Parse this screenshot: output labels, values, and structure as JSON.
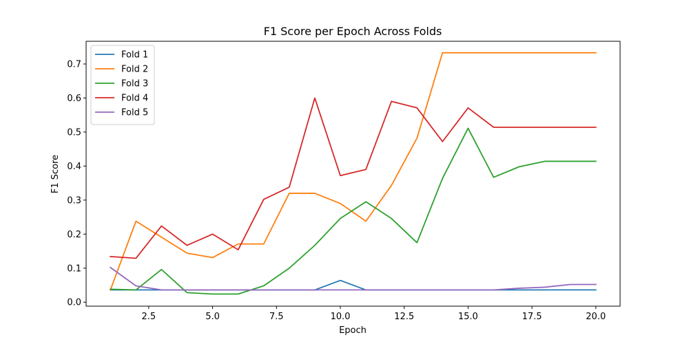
{
  "chart_data": {
    "type": "line",
    "title": "F1 Score per Epoch Across Folds",
    "xlabel": "Epoch",
    "ylabel": "F1 Score",
    "xlim": [
      0.05,
      20.95
    ],
    "ylim": [
      -0.0117,
      0.7667
    ],
    "xticks": [
      2.5,
      5.0,
      7.5,
      10.0,
      12.5,
      15.0,
      17.5,
      20.0
    ],
    "xtick_labels": [
      "2.5",
      "5.0",
      "7.5",
      "10.0",
      "12.5",
      "15.0",
      "17.5",
      "20.0"
    ],
    "yticks": [
      0.0,
      0.1,
      0.2,
      0.3,
      0.4,
      0.5,
      0.6,
      0.7
    ],
    "ytick_labels": [
      "0.0",
      "0.1",
      "0.2",
      "0.3",
      "0.4",
      "0.5",
      "0.6",
      "0.7"
    ],
    "grid": false,
    "legend_position": "top-left",
    "x": [
      1,
      2,
      3,
      4,
      5,
      6,
      7,
      8,
      9,
      10,
      11,
      12,
      13,
      14,
      15,
      16,
      17,
      18,
      19,
      20
    ],
    "series": [
      {
        "name": "Fold 1",
        "color": "#1f77b4",
        "values": [
          0.036,
          0.036,
          0.036,
          0.036,
          0.036,
          0.036,
          0.036,
          0.036,
          0.036,
          0.064,
          0.036,
          0.036,
          0.036,
          0.036,
          0.036,
          0.036,
          0.036,
          0.036,
          0.036,
          0.036
        ]
      },
      {
        "name": "Fold 2",
        "color": "#ff7f0e",
        "values": [
          0.036,
          0.238,
          0.191,
          0.144,
          0.131,
          0.171,
          0.171,
          0.32,
          0.32,
          0.29,
          0.238,
          0.343,
          0.482,
          0.733,
          0.733,
          0.733,
          0.733,
          0.733,
          0.733,
          0.733
        ]
      },
      {
        "name": "Fold 3",
        "color": "#2ca02c",
        "values": [
          0.038,
          0.036,
          0.096,
          0.028,
          0.024,
          0.024,
          0.048,
          0.1,
          0.167,
          0.246,
          0.295,
          0.246,
          0.175,
          0.364,
          0.511,
          0.367,
          0.398,
          0.414,
          0.414,
          0.414
        ]
      },
      {
        "name": "Fold 4",
        "color": "#d62728",
        "values": [
          0.134,
          0.129,
          0.224,
          0.167,
          0.2,
          0.154,
          0.302,
          0.338,
          0.6,
          0.372,
          0.39,
          0.59,
          0.571,
          0.472,
          0.571,
          0.514,
          0.514,
          0.514,
          0.514,
          0.514
        ]
      },
      {
        "name": "Fold 5",
        "color": "#9467bd",
        "values": [
          0.102,
          0.048,
          0.036,
          0.036,
          0.036,
          0.036,
          0.036,
          0.036,
          0.036,
          0.036,
          0.036,
          0.036,
          0.036,
          0.036,
          0.036,
          0.036,
          0.041,
          0.044,
          0.052,
          0.052
        ]
      }
    ]
  }
}
